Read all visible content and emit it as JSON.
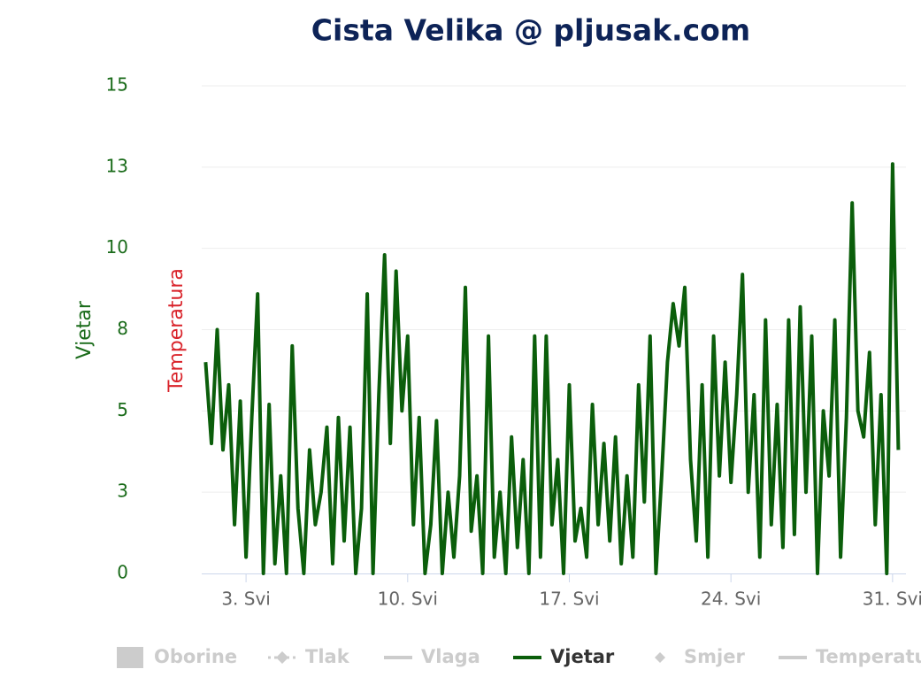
{
  "chart_data": {
    "type": "line",
    "title": "Cista Velika @ pljusak.com",
    "y_axis_label": "Vjetar",
    "y2_axis_label": "Temperatura",
    "x": [
      1.25,
      1.5,
      1.75,
      2,
      2.25,
      2.5,
      2.75,
      3,
      3.25,
      3.5,
      3.75,
      4,
      4.25,
      4.5,
      4.75,
      5,
      5.25,
      5.5,
      5.75,
      6,
      6.25,
      6.5,
      6.75,
      7,
      7.25,
      7.5,
      7.75,
      8,
      8.25,
      8.5,
      8.75,
      9,
      9.25,
      9.5,
      9.75,
      10,
      10.25,
      10.5,
      10.75,
      11,
      11.25,
      11.5,
      11.75,
      12,
      12.25,
      12.5,
      12.75,
      13,
      13.25,
      13.5,
      13.75,
      14,
      14.25,
      14.5,
      14.75,
      15,
      15.25,
      15.5,
      15.75,
      16,
      16.25,
      16.5,
      16.75,
      17,
      17.25,
      17.5,
      17.75,
      18,
      18.25,
      18.5,
      18.75,
      19,
      19.25,
      19.5,
      19.75,
      20,
      20.25,
      20.5,
      20.75,
      21,
      21.25,
      21.5,
      21.75,
      22,
      22.25,
      22.5,
      22.75,
      23,
      23.25,
      23.5,
      23.75,
      24,
      24.25,
      24.5,
      24.75,
      25,
      25.25,
      25.5,
      25.75,
      26,
      26.25,
      26.5,
      26.75,
      27,
      27.25,
      27.5,
      27.75,
      28,
      28.25,
      28.5,
      28.75,
      29,
      29.25,
      29.5,
      29.75,
      30,
      30.25,
      30.5,
      30.75,
      31,
      31.25
    ],
    "series": [
      {
        "name": "Oborine",
        "color": "#cccccc",
        "symbol": "rect",
        "visible": false
      },
      {
        "name": "Tlak",
        "color": "#cccccc",
        "symbol": "dash-diamond",
        "visible": false
      },
      {
        "name": "Vlaga",
        "color": "#cccccc",
        "symbol": "line",
        "visible": false
      },
      {
        "name": "Vjetar",
        "color": "#0b5e0b",
        "symbol": "line",
        "visible": true,
        "values": [
          6.5,
          4,
          7.5,
          3.8,
          5.8,
          1.5,
          5.3,
          0.5,
          4.8,
          8.6,
          0,
          5.2,
          0.3,
          3,
          0,
          7,
          2,
          0,
          3.8,
          1.5,
          2.5,
          4.5,
          0.3,
          4.8,
          1,
          4.5,
          0,
          2,
          8.6,
          0,
          5.5,
          9.8,
          4,
          9.3,
          5,
          7.3,
          1.5,
          4.8,
          0,
          1.5,
          4.7,
          0,
          2.5,
          0.5,
          3,
          8.8,
          1.3,
          3,
          0,
          7.3,
          0.5,
          2.5,
          0,
          4.2,
          0.8,
          3.5,
          0,
          7.3,
          0.5,
          7.3,
          1.5,
          3.5,
          0,
          5.8,
          1,
          2,
          0.5,
          5.2,
          1.5,
          4,
          1,
          4.2,
          0.3,
          3,
          0.5,
          5.8,
          2.2,
          7.3,
          0,
          3,
          6.5,
          8.3,
          7,
          8.8,
          3.5,
          1,
          5.8,
          0.5,
          7.3,
          3,
          6.5,
          2.8,
          5.5,
          9.2,
          2.5,
          5.5,
          0.5,
          7.8,
          1.5,
          5.2,
          0.8,
          7.8,
          1.2,
          8.2,
          2.5,
          7.3,
          0,
          5,
          3,
          7.8,
          0.5,
          4.8,
          11.4,
          5,
          4.2,
          6.8,
          1.5,
          5.5,
          0,
          12.6,
          3.8
        ]
      },
      {
        "name": "Smjer",
        "color": "#cccccc",
        "symbol": "diamond",
        "visible": false
      },
      {
        "name": "Temperatura",
        "color": "#cccccc",
        "symbol": "line",
        "visible": false
      }
    ],
    "xlim": [
      1.08,
      31.58
    ],
    "xticks": [
      {
        "value": 3,
        "label": "3. Svi"
      },
      {
        "value": 10,
        "label": "10. Svi"
      },
      {
        "value": 17,
        "label": "17. Svi"
      },
      {
        "value": 24,
        "label": "24. Svi"
      },
      {
        "value": 31,
        "label": "31. Svi"
      }
    ],
    "ylim": [
      0,
      15
    ],
    "yticks": [
      0,
      {
        "value": 2.5,
        "label": "3"
      },
      5,
      {
        "value": 7.5,
        "label": "8"
      },
      10,
      {
        "value": 12.5,
        "label": "13"
      },
      15
    ],
    "grid": true
  }
}
